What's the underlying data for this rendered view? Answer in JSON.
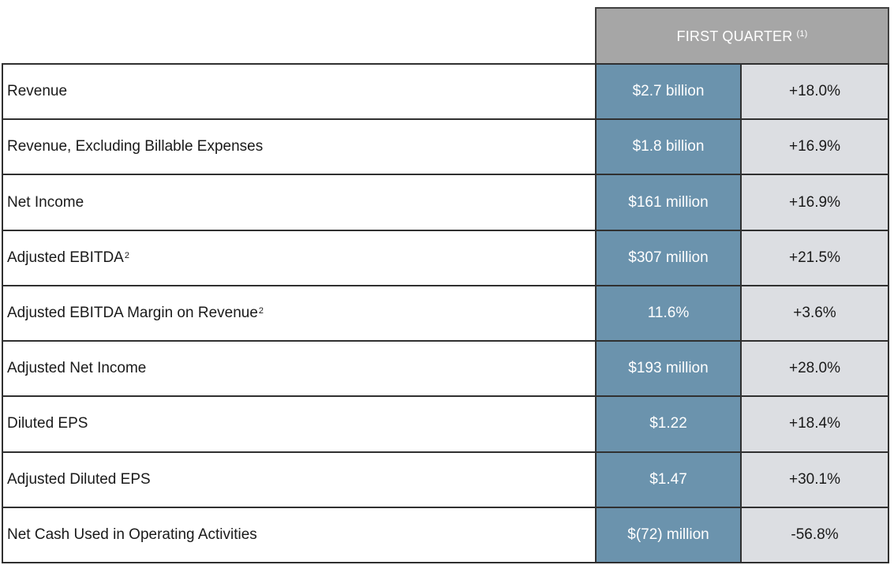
{
  "header": {
    "title": "FIRST QUARTER",
    "footnote": "(1)"
  },
  "rows": [
    {
      "label": "Revenue",
      "sup": "",
      "value": "$2.7 billion",
      "change": "+18.0%"
    },
    {
      "label": "Revenue, Excluding Billable Expenses",
      "sup": "",
      "value": "$1.8 billion",
      "change": "+16.9%"
    },
    {
      "label": "Net Income",
      "sup": "",
      "value": "$161 million",
      "change": "+16.9%"
    },
    {
      "label": "Adjusted EBITDA",
      "sup": "2",
      "value": "$307 million",
      "change": "+21.5%"
    },
    {
      "label": "Adjusted EBITDA Margin on Revenue",
      "sup": "2",
      "value": "11.6%",
      "change": "+3.6%"
    },
    {
      "label": "Adjusted Net Income",
      "sup": "",
      "value": "$193 million",
      "change": "+28.0%"
    },
    {
      "label": "Diluted EPS",
      "sup": "",
      "value": "$1.22",
      "change": "+18.4%"
    },
    {
      "label": "Adjusted Diluted EPS",
      "sup": "",
      "value": "$1.47",
      "change": "+30.1%"
    },
    {
      "label": "Net Cash Used in Operating Activities",
      "sup": "",
      "value": "$(72) million",
      "change": "-56.8%"
    }
  ],
  "colors": {
    "header_bg": "#a6a6a6",
    "value_bg": "#6b93ad",
    "change_bg": "#dcdee2",
    "border": "#303030"
  }
}
